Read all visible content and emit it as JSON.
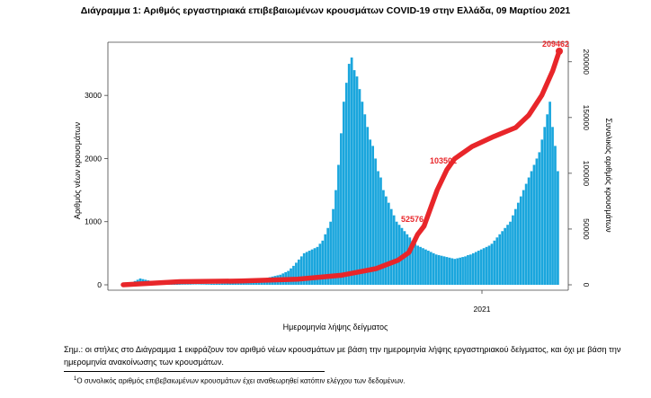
{
  "chart_data": {
    "type": "bar+line",
    "title": "Διάγραμμα 1: Αριθμός εργαστηριακά επιβεβαιωμένων κρουσμάτων COVID-19 στην Ελλάδα, 09 Μαρτίου 2021",
    "xlabel": "Ημερομηνία λήψης δείγματος",
    "ylabel": "Αριθμός νέων κρουσμάτων",
    "y2label": "Συνολικός αριθμός κρουσμάτων",
    "x_tick_labels": [
      "2021"
    ],
    "ylim": [
      0,
      3700
    ],
    "y_ticks": [
      0,
      1000,
      2000,
      3000
    ],
    "y2lim": [
      0,
      209462
    ],
    "y2_ticks": [
      0,
      50000,
      100000,
      150000,
      200000
    ],
    "daily_series": {
      "name": "Νέα κρούσματα",
      "color": "#1aa6dd",
      "values": [
        5,
        10,
        20,
        40,
        60,
        80,
        100,
        90,
        80,
        70,
        60,
        50,
        45,
        40,
        35,
        30,
        25,
        20,
        18,
        15,
        15,
        12,
        10,
        10,
        10,
        10,
        8,
        8,
        8,
        10,
        10,
        12,
        12,
        15,
        15,
        18,
        18,
        20,
        20,
        22,
        25,
        25,
        30,
        30,
        35,
        40,
        45,
        50,
        55,
        60,
        70,
        80,
        90,
        100,
        110,
        120,
        130,
        140,
        150,
        160,
        180,
        200,
        220,
        260,
        300,
        350,
        400,
        450,
        500,
        520,
        540,
        560,
        580,
        600,
        650,
        700,
        800,
        900,
        1000,
        1200,
        1500,
        1900,
        2400,
        2900,
        3200,
        3500,
        3600,
        3400,
        3300,
        3100,
        2900,
        2700,
        2500,
        2300,
        2200,
        2000,
        1800,
        1700,
        1500,
        1400,
        1300,
        1200,
        1100,
        1000,
        950,
        900,
        850,
        800,
        750,
        700,
        650,
        620,
        600,
        580,
        560,
        540,
        520,
        500,
        480,
        470,
        460,
        450,
        440,
        430,
        420,
        410,
        420,
        430,
        440,
        450,
        470,
        480,
        500,
        520,
        540,
        560,
        580,
        600,
        620,
        650,
        700,
        750,
        800,
        850,
        900,
        950,
        1000,
        1100,
        1200,
        1300,
        1400,
        1500,
        1600,
        1700,
        1800,
        1900,
        2000,
        2100,
        2300,
        2500,
        2700,
        2900,
        2500,
        2200,
        1800
      ]
    },
    "cumulative_series": {
      "name": "Συνολικά κρούσματα",
      "color": "#e8262a",
      "anchors": [
        {
          "t": 0.0,
          "v": 0
        },
        {
          "t": 0.13,
          "v": 2800
        },
        {
          "t": 0.27,
          "v": 3400
        },
        {
          "t": 0.4,
          "v": 5000
        },
        {
          "t": 0.5,
          "v": 8500
        },
        {
          "t": 0.58,
          "v": 14500
        },
        {
          "t": 0.63,
          "v": 22000
        },
        {
          "t": 0.655,
          "v": 29000
        },
        {
          "t": 0.675,
          "v": 45000
        },
        {
          "t": 0.69,
          "v": 52576
        },
        {
          "t": 0.72,
          "v": 85000
        },
        {
          "t": 0.742,
          "v": 103000
        },
        {
          "t": 0.76,
          "v": 113000
        },
        {
          "t": 0.8,
          "v": 124000
        },
        {
          "t": 0.85,
          "v": 133000
        },
        {
          "t": 0.9,
          "v": 141000
        },
        {
          "t": 0.93,
          "v": 152000
        },
        {
          "t": 0.96,
          "v": 170000
        },
        {
          "t": 0.985,
          "v": 192000
        },
        {
          "t": 1.0,
          "v": 209462
        }
      ]
    },
    "annotations": [
      "52576",
      "103501",
      "209462"
    ]
  },
  "note": "Σημ.: οι στήλες στο Διάγραμμα 1 εκφράζουν τον αριθμό νέων κρουσμάτων με βάση την ημερομηνία λήψης εργαστηριακού δείγματος, και όχι με βάση την ημερομηνία ανακοίνωσης των κρουσμάτων.",
  "footnote": {
    "marker": "1",
    "text": "Ο συνολικός αριθμός επιβεβαιωμένων κρουσμάτων έχει αναθεωρηθεί κατόπιν ελέγχου των δεδομένων."
  }
}
